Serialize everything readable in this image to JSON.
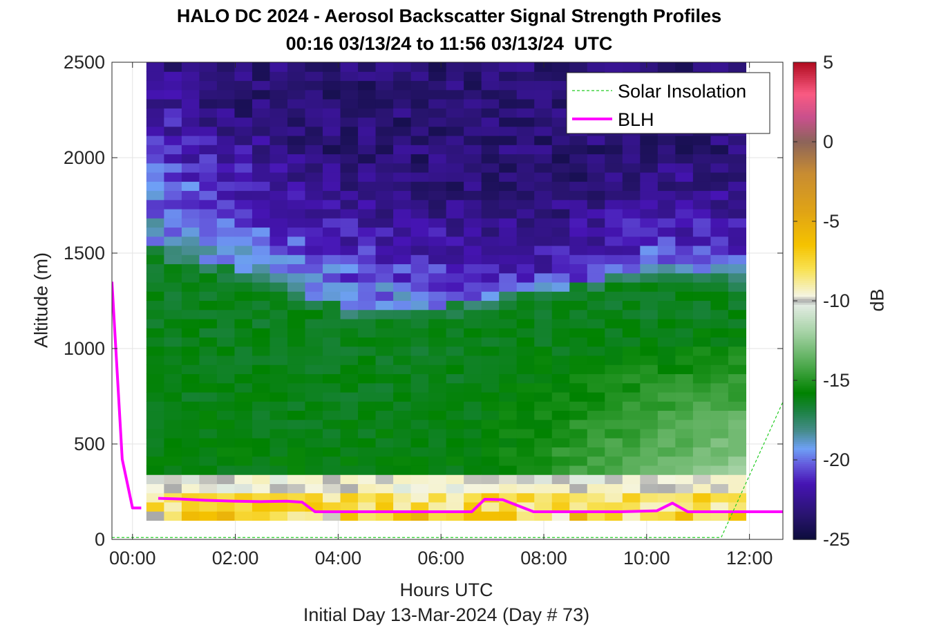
{
  "chart_data": {
    "type": "heatmap",
    "title": "HALO DC 2024 - Aerosol Backscatter Signal Strength Profiles",
    "subtitle": "00:16 03/13/24 to 11:56 03/13/24  UTC",
    "xlabel": "Hours UTC",
    "xlabel2": "Initial Day 13-Mar-2024 (Day # 73)",
    "ylabel": "Altitude (m)",
    "colorbar_label": "dB",
    "xlim": [
      -0.4,
      12.65
    ],
    "ylim": [
      0,
      2500
    ],
    "x_ticks": [
      "00:00",
      "02:00",
      "04:00",
      "06:00",
      "08:00",
      "10:00",
      "12:00"
    ],
    "x_tick_values": [
      0,
      2,
      4,
      6,
      8,
      10,
      12
    ],
    "y_ticks": [
      "0",
      "500",
      "1000",
      "1500",
      "2000",
      "2500"
    ],
    "y_tick_values": [
      0,
      500,
      1000,
      1500,
      2000,
      2500
    ],
    "clim": [
      -25,
      5
    ],
    "colorbar_ticks": [
      "5",
      "0",
      "-5",
      "-10",
      "-15",
      "-20",
      "-25"
    ],
    "colorbar_tick_values": [
      5,
      0,
      -5,
      -10,
      -15,
      -20,
      -25
    ],
    "grid": true,
    "legend_position": "top-right",
    "heatmap_x_range": [
      0.27,
      11.93
    ],
    "heatmap_y_range": [
      100,
      2500
    ],
    "columns": 34,
    "rows": 50,
    "layer_tops": [
      {
        "x": 0.27,
        "aerosol_top": 1500,
        "residual_top": 2150
      },
      {
        "x": 1.0,
        "aerosol_top": 1450,
        "residual_top": 2150
      },
      {
        "x": 1.5,
        "aerosol_top": 1380,
        "residual_top": 1950
      },
      {
        "x": 2.5,
        "aerosol_top": 1330,
        "residual_top": 1850
      },
      {
        "x": 3.5,
        "aerosol_top": 1200,
        "residual_top": 1650
      },
      {
        "x": 4.5,
        "aerosol_top": 1130,
        "residual_top": 1550
      },
      {
        "x": 5.5,
        "aerosol_top": 1140,
        "residual_top": 1480
      },
      {
        "x": 6.5,
        "aerosol_top": 1180,
        "residual_top": 1450
      },
      {
        "x": 7.5,
        "aerosol_top": 1240,
        "residual_top": 1430
      },
      {
        "x": 8.5,
        "aerosol_top": 1260,
        "residual_top": 1420
      },
      {
        "x": 9.5,
        "aerosol_top": 1340,
        "residual_top": 1560
      },
      {
        "x": 10.5,
        "aerosol_top": 1340,
        "residual_top": 1620
      },
      {
        "x": 11.93,
        "aerosol_top": 1320,
        "residual_top": 1600
      }
    ],
    "series": [
      {
        "name": "BLH",
        "color": "#ff00ff",
        "segments": [
          {
            "x": [
              -0.4,
              -0.2,
              0.0,
              0.17
            ],
            "y": [
              1350,
              420,
              165,
              165
            ]
          },
          {
            "x": [
              0.5,
              0.9,
              1.4,
              2.0,
              2.5,
              3.0,
              3.3,
              3.55,
              4.0,
              5.0,
              6.0,
              6.6,
              6.85,
              7.2,
              7.8,
              8.5,
              9.5,
              10.2,
              10.5,
              10.8,
              11.5,
              12.65
            ],
            "y": [
              215,
              212,
              205,
              200,
              198,
              200,
              195,
              145,
              145,
              145,
              145,
              145,
              210,
              208,
              145,
              145,
              145,
              150,
              190,
              145,
              145,
              145
            ]
          }
        ]
      },
      {
        "name": "Solar Insolation",
        "color": "#22cc22",
        "x": [
          -0.4,
          11.45,
          12.65
        ],
        "y": [
          10,
          10,
          720
        ]
      }
    ]
  }
}
